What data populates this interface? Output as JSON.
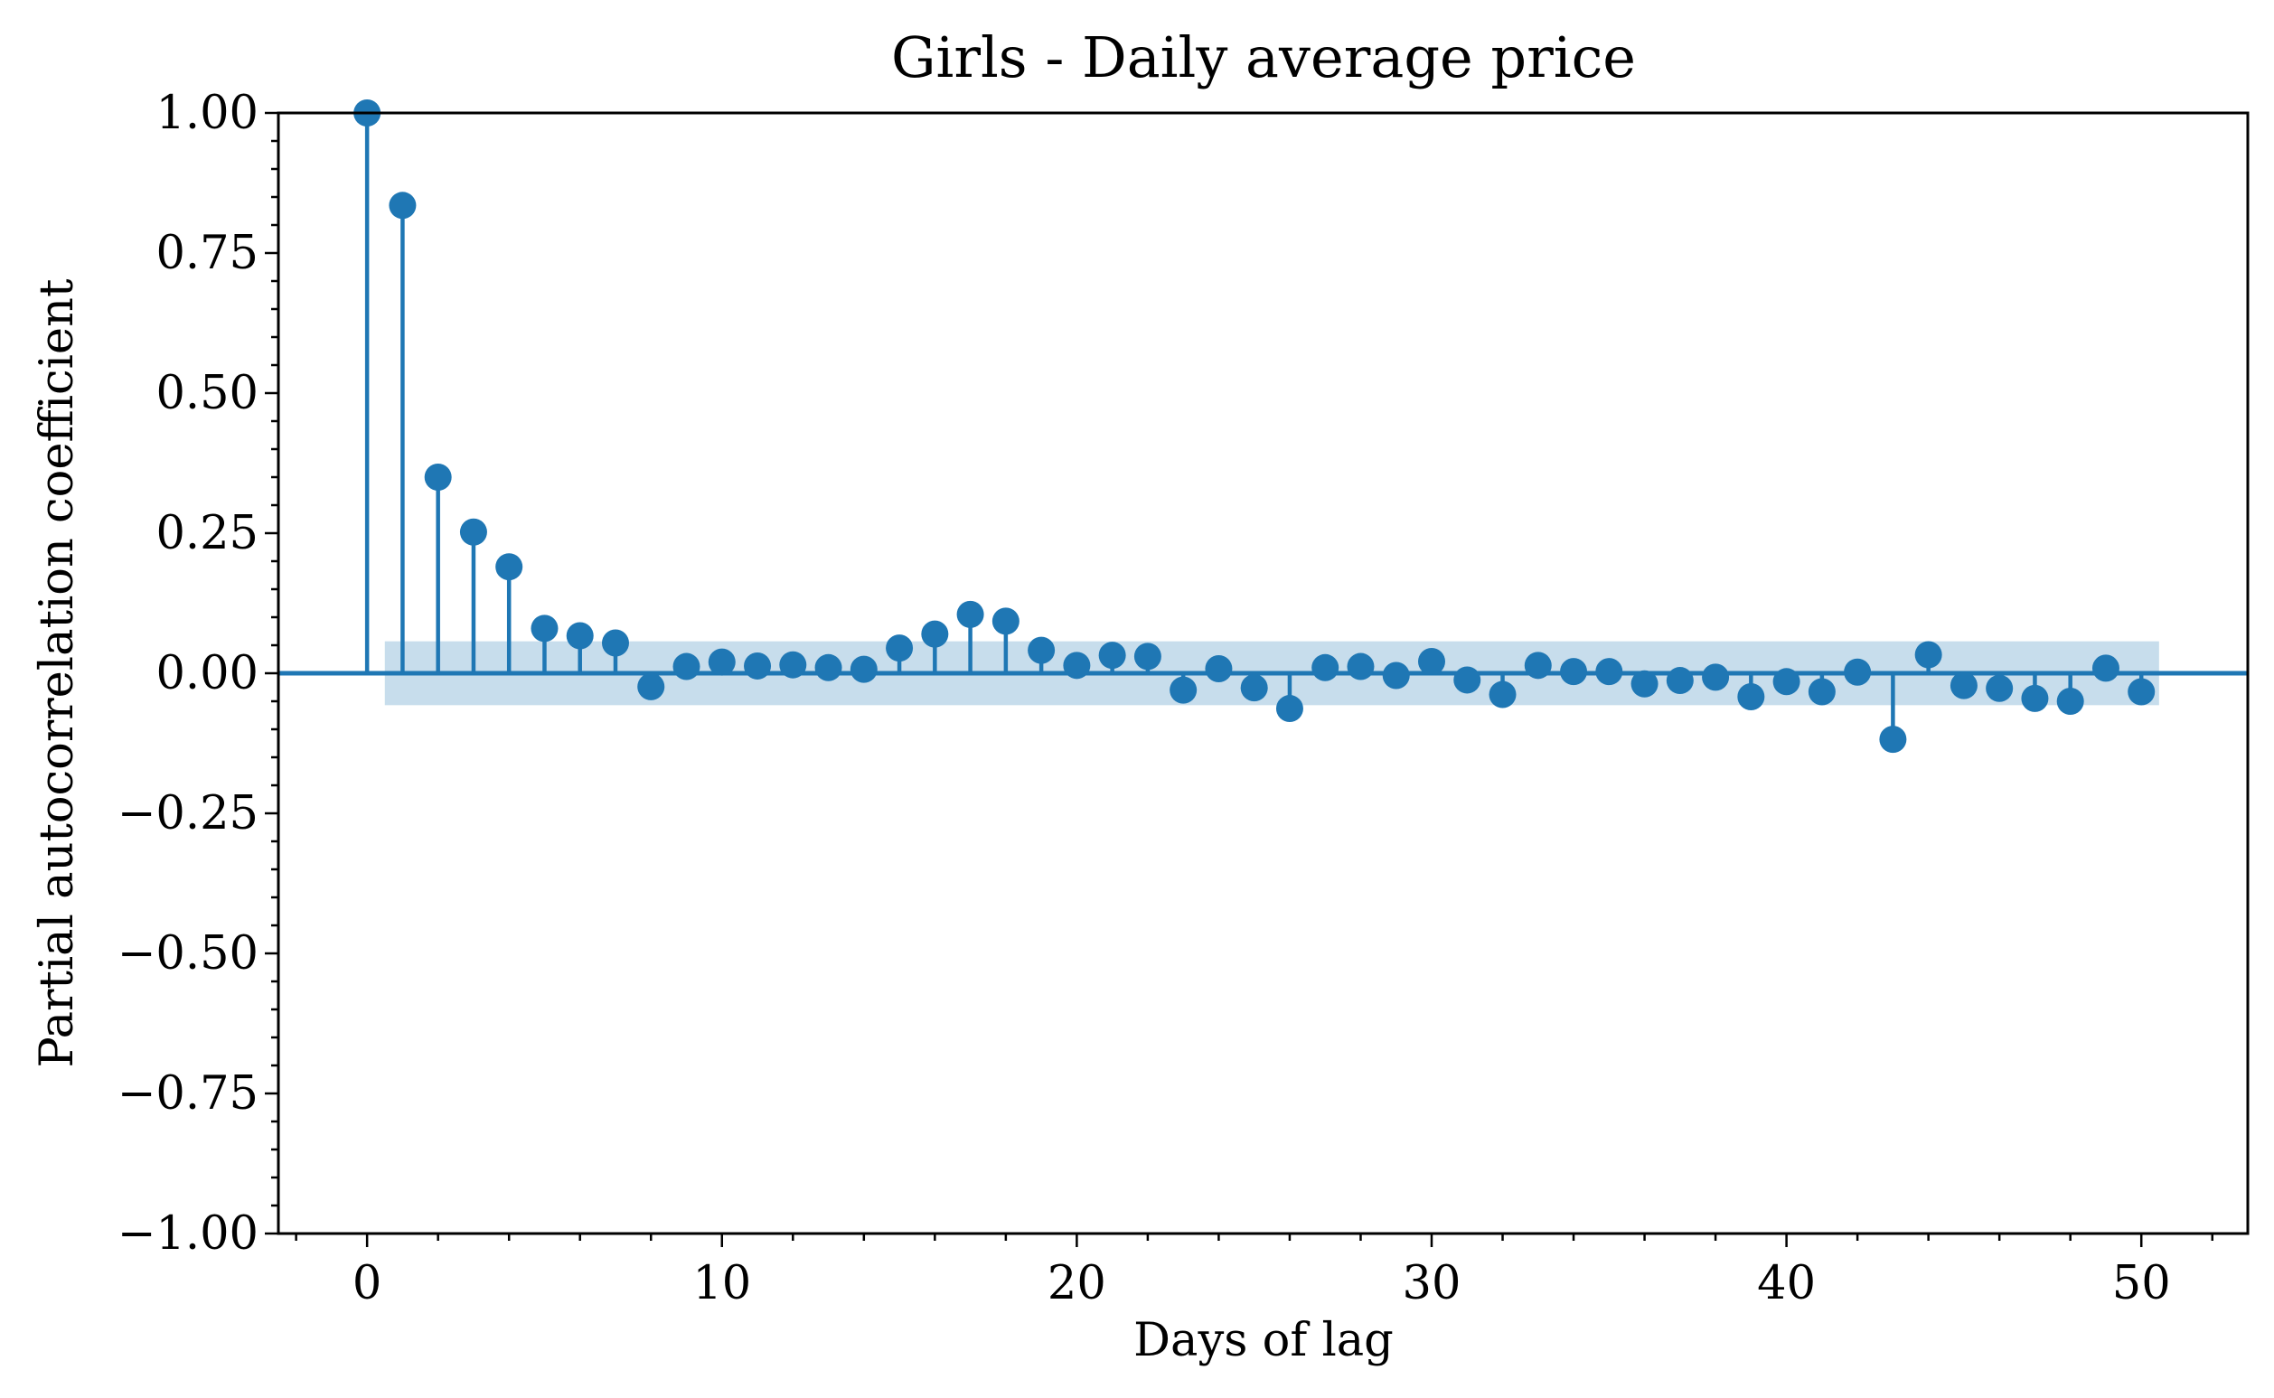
{
  "chart_data": {
    "type": "stem",
    "title": "Girls - Daily average price",
    "xlabel": "Days of lag",
    "ylabel": "Partial autocorrelation coefficient",
    "xlim": [
      -2.5,
      53
    ],
    "ylim": [
      -1.0,
      1.0
    ],
    "xticks": [
      0,
      10,
      20,
      30,
      40,
      50
    ],
    "xtick_labels": [
      "0",
      "10",
      "20",
      "30",
      "40",
      "50"
    ],
    "yticks": [
      -1.0,
      -0.75,
      -0.5,
      -0.25,
      0.0,
      0.25,
      0.5,
      0.75,
      1.0
    ],
    "ytick_labels": [
      "−1.00",
      "−0.75",
      "−0.50",
      "−0.25",
      "0.00",
      "0.25",
      "0.50",
      "0.75",
      "1.00"
    ],
    "confidence_band": {
      "x_range": [
        0.5,
        50.5
      ],
      "y_range": [
        -0.057,
        0.057
      ]
    },
    "lags": [
      0,
      1,
      2,
      3,
      4,
      5,
      6,
      7,
      8,
      9,
      10,
      11,
      12,
      13,
      14,
      15,
      16,
      17,
      18,
      19,
      20,
      21,
      22,
      23,
      24,
      25,
      26,
      27,
      28,
      29,
      30,
      31,
      32,
      33,
      34,
      35,
      36,
      37,
      38,
      39,
      40,
      41,
      42,
      43,
      44,
      45,
      46,
      47,
      48,
      49,
      50
    ],
    "values": [
      1.0,
      0.835,
      0.35,
      0.252,
      0.19,
      0.08,
      0.067,
      0.054,
      -0.024,
      0.012,
      0.02,
      0.013,
      0.015,
      0.01,
      0.007,
      0.045,
      0.07,
      0.105,
      0.093,
      0.041,
      0.014,
      0.032,
      0.03,
      -0.03,
      0.008,
      -0.026,
      -0.063,
      0.01,
      0.012,
      -0.004,
      0.021,
      -0.012,
      -0.038,
      0.014,
      0.003,
      0.003,
      -0.019,
      -0.013,
      -0.007,
      -0.042,
      -0.015,
      -0.033,
      0.002,
      -0.118,
      0.033,
      -0.022,
      -0.027,
      -0.045,
      -0.05,
      0.009,
      -0.033
    ],
    "colors": {
      "series": "#1f77b4",
      "band": "#1f77b4"
    }
  }
}
